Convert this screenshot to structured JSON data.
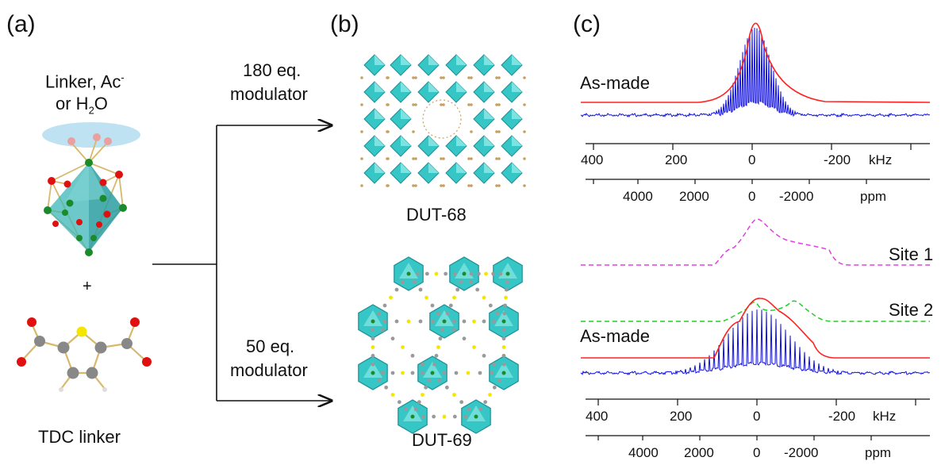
{
  "panels": {
    "a": "(a)",
    "b": "(b)",
    "c": "(c)"
  },
  "panel_a": {
    "cluster_label_1": "Linker, Ac",
    "cluster_label_sup": "-",
    "cluster_label_2a": "or H",
    "cluster_label_sub": "2",
    "cluster_label_2b": "O",
    "plus": "+",
    "linker_label": "TDC linker"
  },
  "panel_b": {
    "top_condition_1": "180 eq.",
    "top_condition_2": "modulator",
    "top_product": "DUT-68",
    "bottom_condition_1": "50 eq.",
    "bottom_condition_2": "modulator",
    "bottom_product": "DUT-69"
  },
  "panel_c": {
    "top": {
      "spectrum_label": "As-made",
      "khz_ticks": [
        "400",
        "200",
        "0",
        "-200"
      ],
      "khz_unit": "kHz",
      "ppm_ticks": [
        "4000",
        "2000",
        "0",
        "-2000"
      ],
      "ppm_unit": "ppm"
    },
    "bottom": {
      "site1_label": "Site 1",
      "site2_label": "Site 2",
      "spectrum_label": "As-made",
      "khz_ticks": [
        "400",
        "200",
        "0",
        "-200"
      ],
      "khz_unit": "kHz",
      "ppm_ticks": [
        "4000",
        "2000",
        "0",
        "-2000"
      ],
      "ppm_unit": "ppm"
    },
    "colors": {
      "simulation": "#ff2020",
      "experiment": "#1010e0",
      "site1": "#e040e0",
      "site2": "#20d020"
    }
  }
}
